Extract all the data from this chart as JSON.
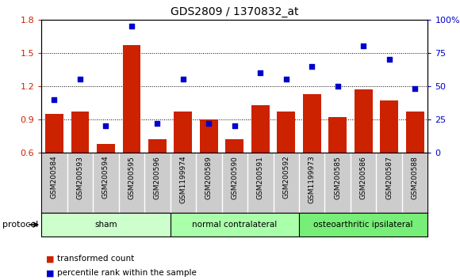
{
  "title": "GDS2809 / 1370832_at",
  "categories": [
    "GSM200584",
    "GSM200593",
    "GSM200594",
    "GSM200595",
    "GSM200596",
    "GSM1199974",
    "GSM200589",
    "GSM200590",
    "GSM200591",
    "GSM200592",
    "GSM1199973",
    "GSM200585",
    "GSM200586",
    "GSM200587",
    "GSM200588"
  ],
  "bar_values": [
    0.95,
    0.97,
    0.68,
    1.57,
    0.72,
    0.97,
    0.9,
    0.72,
    1.03,
    0.97,
    1.13,
    0.92,
    1.17,
    1.07,
    0.97
  ],
  "dot_values": [
    40,
    55,
    20,
    95,
    22,
    55,
    22,
    20,
    60,
    55,
    65,
    50,
    80,
    70,
    48
  ],
  "bar_color": "#cc2200",
  "dot_color": "#0000cc",
  "ylim_left": [
    0.6,
    1.8
  ],
  "ylim_right": [
    0,
    100
  ],
  "yticks_left": [
    0.6,
    0.9,
    1.2,
    1.5,
    1.8
  ],
  "yticks_right": [
    0,
    25,
    50,
    75,
    100
  ],
  "ytick_labels_right": [
    "0",
    "25",
    "50",
    "75",
    "100%"
  ],
  "groups": [
    {
      "label": "sham",
      "start": 0,
      "end": 5,
      "color": "#ccffcc"
    },
    {
      "label": "normal contralateral",
      "start": 5,
      "end": 10,
      "color": "#aaffaa"
    },
    {
      "label": "osteoarthritic ipsilateral",
      "start": 10,
      "end": 15,
      "color": "#77ee77"
    }
  ],
  "protocol_label": "protocol",
  "legend_bar_label": "transformed count",
  "legend_dot_label": "percentile rank within the sample",
  "background_color": "#ffffff",
  "tick_label_color_left": "#cc2200",
  "tick_label_color_right": "#0000cc",
  "category_bg_color": "#cccccc"
}
